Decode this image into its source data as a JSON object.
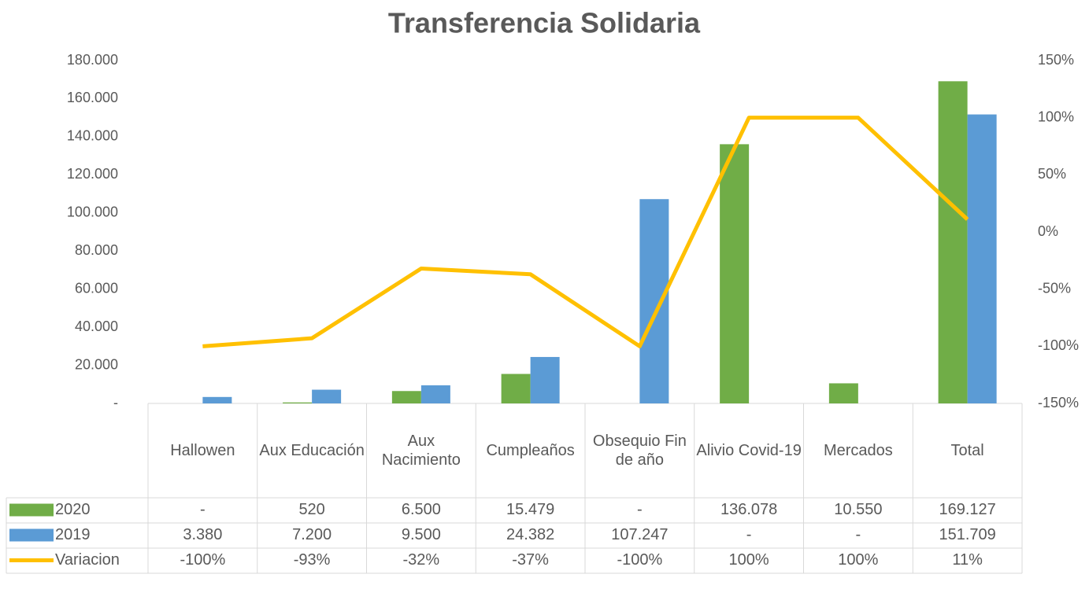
{
  "chart_data": {
    "type": "bar_line_table",
    "title": "Transferencia Solidaria",
    "categories": [
      "Hallowen",
      "Aux Educación",
      "Aux Nacimiento",
      "Cumpleaños",
      "Obsequio Fin de año",
      "Alivio Covid-19",
      "Mercados",
      "Total"
    ],
    "series": [
      {
        "name": "2020",
        "type": "bar",
        "color": "#70ad47",
        "values": [
          0,
          520,
          6500,
          15479,
          0,
          136078,
          10550,
          169127
        ],
        "value_labels": [
          "-",
          "520",
          "6.500",
          "15.479",
          "-",
          "136.078",
          "10.550",
          "169.127"
        ]
      },
      {
        "name": "2019",
        "type": "bar",
        "color": "#5b9bd5",
        "values": [
          3380,
          7200,
          9500,
          24382,
          107247,
          0,
          0,
          151709
        ],
        "value_labels": [
          "3.380",
          "7.200",
          "9.500",
          "24.382",
          "107.247",
          "-",
          "-",
          "151.709"
        ]
      },
      {
        "name": "Variacion",
        "type": "line",
        "axis": "y2",
        "color": "#ffc000",
        "values": [
          -100,
          -93,
          -32,
          -37,
          -100,
          100,
          100,
          11
        ],
        "value_labels": [
          "-100%",
          "-93%",
          "-32%",
          "-37%",
          "-100%",
          "100%",
          "100%",
          "11%"
        ]
      }
    ],
    "ylim": [
      0,
      180000
    ],
    "yticks": [
      {
        "value": 0,
        "label": "-"
      },
      {
        "value": 20000,
        "label": "20.000"
      },
      {
        "value": 40000,
        "label": "40.000"
      },
      {
        "value": 60000,
        "label": "60.000"
      },
      {
        "value": 80000,
        "label": "80.000"
      },
      {
        "value": 100000,
        "label": "100.000"
      },
      {
        "value": 120000,
        "label": "120.000"
      },
      {
        "value": 140000,
        "label": "140.000"
      },
      {
        "value": 160000,
        "label": "160.000"
      },
      {
        "value": 180000,
        "label": "180.000"
      }
    ],
    "y2lim": [
      -150,
      150
    ],
    "y2ticks": [
      {
        "value": -150,
        "label": "-150%"
      },
      {
        "value": -100,
        "label": "-100%"
      },
      {
        "value": -50,
        "label": "-50%"
      },
      {
        "value": 0,
        "label": "0%"
      },
      {
        "value": 50,
        "label": "50%"
      },
      {
        "value": 100,
        "label": "100%"
      },
      {
        "value": 150,
        "label": "150%"
      }
    ]
  }
}
